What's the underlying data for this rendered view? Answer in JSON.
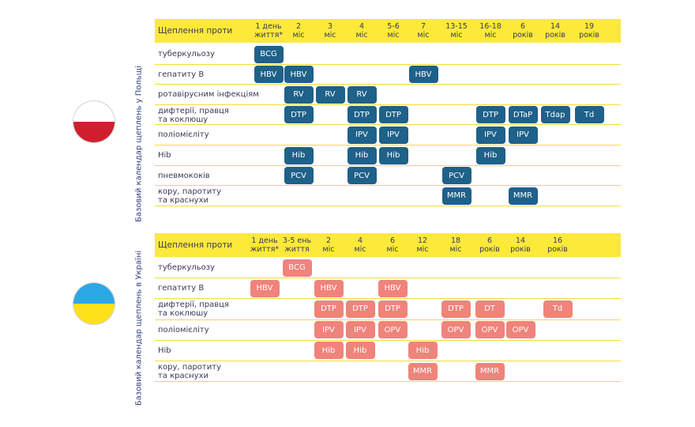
{
  "poland": {
    "side_label": "Базовий календар щеплень у Польщі",
    "flag_colors": {
      "top": "#ffffff",
      "bottom": "#cf1f2f"
    },
    "header_first": "Щеплення проти",
    "columns": [
      {
        "line1": "1 день",
        "line2": "життя*"
      },
      {
        "line1": "2",
        "line2": "міс"
      },
      {
        "line1": "3",
        "line2": "міс"
      },
      {
        "line1": "4",
        "line2": "міс"
      },
      {
        "line1": "5-6",
        "line2": "міс"
      },
      {
        "line1": "7",
        "line2": "міс"
      },
      {
        "line1": "13-15",
        "line2": "міс"
      },
      {
        "line1": "16-18",
        "line2": "міс"
      },
      {
        "line1": "6",
        "line2": "років"
      },
      {
        "line1": "14",
        "line2": "років"
      },
      {
        "line1": "19",
        "line2": "років"
      }
    ],
    "rows": [
      {
        "label": "туберкульозу",
        "cells": [
          {
            "col": 0,
            "text": "BCG"
          }
        ]
      },
      {
        "label": "гепатиту В",
        "cells": [
          {
            "col": 0,
            "text": "HBV"
          },
          {
            "col": 1,
            "text": "HBV"
          },
          {
            "col": 5,
            "text": "HBV"
          }
        ]
      },
      {
        "label": "ротавірусним інфекціям",
        "cells": [
          {
            "col": 1,
            "text": "RV"
          },
          {
            "col": 2,
            "text": "RV"
          },
          {
            "col": 3,
            "text": "RV"
          }
        ]
      },
      {
        "label": "дифтерії, правця\nта коклюшу",
        "cells": [
          {
            "col": 1,
            "text": "DTP"
          },
          {
            "col": 3,
            "text": "DTP"
          },
          {
            "col": 4,
            "text": "DTP"
          },
          {
            "col": 7,
            "text": "DTP"
          },
          {
            "col": 8,
            "text": "DTaP"
          },
          {
            "col": 9,
            "text": "Tdap"
          },
          {
            "col": 10,
            "text": "Td"
          }
        ]
      },
      {
        "label": "поліомієліту",
        "cells": [
          {
            "col": 3,
            "text": "IPV"
          },
          {
            "col": 4,
            "text": "IPV"
          },
          {
            "col": 7,
            "text": "IPV"
          },
          {
            "col": 8,
            "text": "IPV"
          }
        ]
      },
      {
        "label": "Hib",
        "cells": [
          {
            "col": 1,
            "text": "Hib"
          },
          {
            "col": 3,
            "text": "Hib"
          },
          {
            "col": 4,
            "text": "Hib"
          },
          {
            "col": 7,
            "text": "Hib"
          }
        ]
      },
      {
        "label": "пневмококів",
        "cells": [
          {
            "col": 1,
            "text": "PCV"
          },
          {
            "col": 3,
            "text": "PCV"
          },
          {
            "col": 6,
            "text": "PCV"
          }
        ]
      },
      {
        "label": "кору, паротиту\nта краснухи",
        "cells": [
          {
            "col": 6,
            "text": "MMR"
          },
          {
            "col": 8,
            "text": "MMR"
          }
        ]
      }
    ]
  },
  "ukraine": {
    "side_label": "Базовий календар щеплень в Україні",
    "flag_colors": {
      "top": "#2aa8e6",
      "bottom": "#ffe11a"
    },
    "header_first": "Щеплення проти",
    "columns": [
      {
        "line1": "1 день",
        "line2": "життя*"
      },
      {
        "line1": "3-5 ень",
        "line2": "життя"
      },
      {
        "line1": "2",
        "line2": "міс"
      },
      {
        "line1": "4",
        "line2": "міс"
      },
      {
        "line1": "6",
        "line2": "міс"
      },
      {
        "line1": "12",
        "line2": "міс"
      },
      {
        "line1": "18",
        "line2": "міс"
      },
      {
        "line1": "6",
        "line2": "років"
      },
      {
        "line1": "14",
        "line2": "років"
      },
      {
        "line1": "16",
        "line2": "років"
      }
    ],
    "rows": [
      {
        "label": "туберкульозу",
        "cells": [
          {
            "col": 1,
            "text": "BCG"
          }
        ]
      },
      {
        "label": "гепатиту В",
        "cells": [
          {
            "col": 0,
            "text": "HBV"
          },
          {
            "col": 2,
            "text": "HBV"
          },
          {
            "col": 4,
            "text": "HBV"
          }
        ]
      },
      {
        "label": "дифтерії, правця\nта коклюшу",
        "cells": [
          {
            "col": 2,
            "text": "DTP"
          },
          {
            "col": 3,
            "text": "DTP"
          },
          {
            "col": 4,
            "text": "DTP"
          },
          {
            "col": 6,
            "text": "DTP"
          },
          {
            "col": 7,
            "text": "DT"
          },
          {
            "col": 9,
            "text": "Td"
          }
        ]
      },
      {
        "label": "поліомієліту",
        "cells": [
          {
            "col": 2,
            "text": "IPV"
          },
          {
            "col": 3,
            "text": "IPV"
          },
          {
            "col": 4,
            "text": "OPV"
          },
          {
            "col": 6,
            "text": "OPV"
          },
          {
            "col": 7,
            "text": "OPV"
          },
          {
            "col": 8,
            "text": "OPV"
          }
        ]
      },
      {
        "label": "Hib",
        "cells": [
          {
            "col": 2,
            "text": "Hib"
          },
          {
            "col": 3,
            "text": "Hib"
          },
          {
            "col": 5,
            "text": "Hib"
          }
        ]
      },
      {
        "label": "кору, паротиту\nта краснухи",
        "cells": [
          {
            "col": 5,
            "text": "MMR"
          },
          {
            "col": 7,
            "text": "MMR"
          }
        ]
      }
    ]
  }
}
